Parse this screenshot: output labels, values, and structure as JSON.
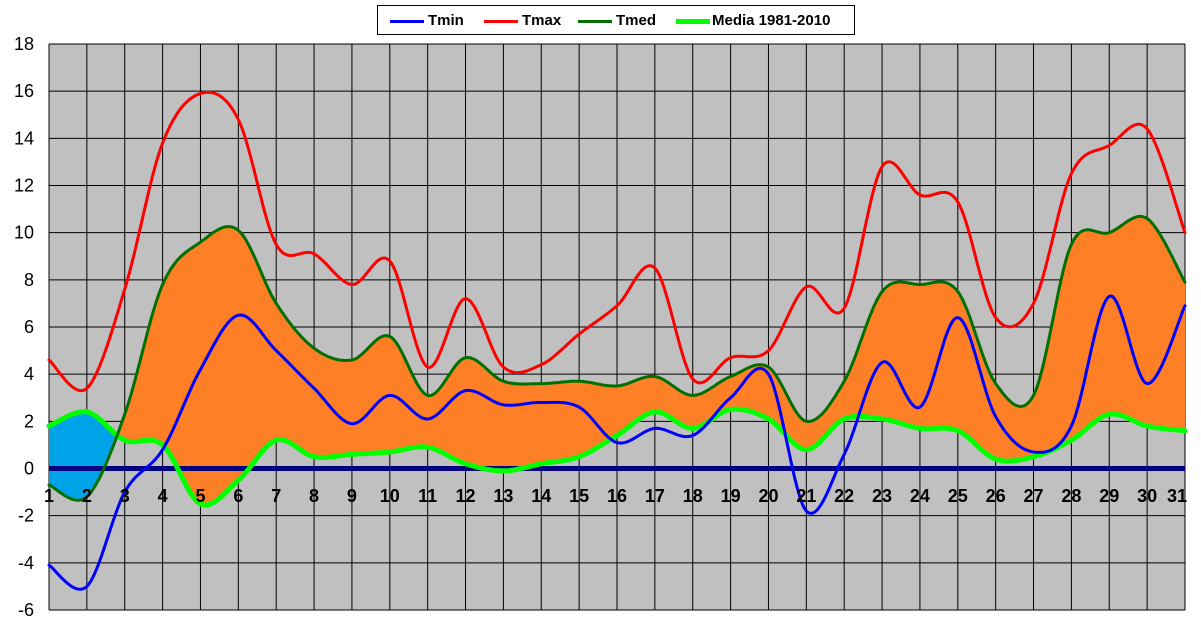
{
  "chart_data": {
    "type": "line",
    "title": "",
    "xlabel": "",
    "ylabel": "",
    "x": [
      1,
      2,
      3,
      4,
      5,
      6,
      7,
      8,
      9,
      10,
      11,
      12,
      13,
      14,
      15,
      16,
      17,
      18,
      19,
      20,
      21,
      22,
      23,
      24,
      25,
      26,
      27,
      28,
      29,
      30,
      31
    ],
    "ylim": [
      -6,
      18
    ],
    "yticks": [
      -6,
      -4,
      -2,
      0,
      2,
      4,
      6,
      8,
      10,
      12,
      14,
      16,
      18
    ],
    "xtick_labels": [
      "1",
      "2",
      "3",
      "4",
      "5",
      "6",
      "7",
      "8",
      "9",
      "10",
      "11",
      "12",
      "13",
      "14",
      "15",
      "16",
      "17",
      "18",
      "19",
      "20",
      "21",
      "22",
      "23",
      "24",
      "25",
      "26",
      "27",
      "28",
      "29",
      "30",
      "31"
    ],
    "grid": true,
    "legend_position": "top-center",
    "series": [
      {
        "name": "Tmin",
        "color": "#0000ff",
        "values": [
          -4.1,
          -5.0,
          -1.0,
          0.8,
          4.2,
          6.5,
          5.0,
          3.4,
          1.9,
          3.1,
          2.1,
          3.3,
          2.7,
          2.8,
          2.6,
          1.1,
          1.7,
          1.4,
          3.0,
          4.0,
          -1.8,
          0.6,
          4.5,
          2.6,
          6.4,
          2.2,
          0.7,
          1.8,
          7.3,
          3.6,
          6.9
        ]
      },
      {
        "name": "Tmax",
        "color": "#ff0000",
        "values": [
          4.6,
          3.4,
          7.6,
          13.8,
          15.9,
          14.8,
          9.5,
          9.1,
          7.8,
          8.8,
          4.3,
          7.2,
          4.3,
          4.4,
          5.7,
          6.9,
          8.5,
          3.8,
          4.7,
          5.0,
          7.7,
          6.8,
          12.8,
          11.6,
          11.3,
          6.4,
          7.0,
          12.5,
          13.7,
          14.4,
          10.0
        ]
      },
      {
        "name": "Tmed",
        "color": "#007000",
        "values": [
          -0.7,
          -1.2,
          2.3,
          7.8,
          9.6,
          10.1,
          7.0,
          5.1,
          4.6,
          5.6,
          3.1,
          4.7,
          3.7,
          3.6,
          3.7,
          3.5,
          3.9,
          3.1,
          3.9,
          4.3,
          2.0,
          3.7,
          7.5,
          7.8,
          7.5,
          3.6,
          3.1,
          9.5,
          10.0,
          10.6,
          7.9
        ]
      },
      {
        "name": "Media 1981-2010",
        "color": "#00ff00",
        "values": [
          1.8,
          2.4,
          1.2,
          1.0,
          -1.5,
          -0.5,
          1.2,
          0.5,
          0.6,
          0.7,
          0.9,
          0.2,
          -0.1,
          0.2,
          0.5,
          1.4,
          2.4,
          1.7,
          2.5,
          2.1,
          0.8,
          2.1,
          2.1,
          1.7,
          1.6,
          0.4,
          0.5,
          1.2,
          2.3,
          1.8,
          1.6
        ]
      }
    ],
    "fill_above_color": "#ff7f27",
    "fill_below_color": "#00a2e8",
    "zero_line_color": "#000080",
    "plot_background": "#c0c0c0"
  },
  "legend": {
    "items": [
      {
        "label": "Tmin",
        "color": "#0000ff"
      },
      {
        "label": "Tmax",
        "color": "#ff0000"
      },
      {
        "label": "Tmed",
        "color": "#007000"
      },
      {
        "label": "Media 1981-2010",
        "color": "#00ff00"
      }
    ]
  }
}
